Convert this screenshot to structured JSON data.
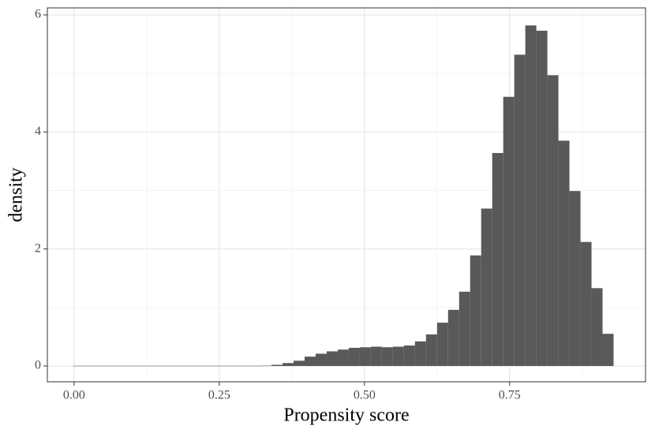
{
  "chart_data": {
    "type": "histogram",
    "xlabel": "Propensity score",
    "ylabel": "density",
    "bins": [
      -0.002,
      0.017,
      0.036,
      0.055,
      0.074,
      0.093,
      0.112,
      0.131,
      0.15,
      0.169,
      0.188,
      0.207,
      0.226,
      0.245,
      0.264,
      0.283,
      0.302,
      0.321,
      0.34,
      0.359,
      0.378,
      0.397,
      0.416,
      0.435,
      0.454,
      0.473,
      0.492,
      0.511,
      0.53,
      0.549,
      0.568,
      0.587,
      0.606,
      0.625,
      0.644,
      0.663,
      0.682,
      0.701,
      0.72,
      0.739,
      0.758,
      0.777,
      0.796,
      0.815,
      0.834,
      0.853,
      0.872,
      0.891,
      0.91,
      0.929
    ],
    "values": [
      0.003,
      0.003,
      0.003,
      0.003,
      0.003,
      0.003,
      0.003,
      0.003,
      0.003,
      0.003,
      0.003,
      0.003,
      0.003,
      0.003,
      0.003,
      0.003,
      0.003,
      0.005,
      0.02,
      0.05,
      0.09,
      0.16,
      0.21,
      0.25,
      0.28,
      0.31,
      0.32,
      0.33,
      0.32,
      0.33,
      0.35,
      0.42,
      0.54,
      0.74,
      0.96,
      1.27,
      1.89,
      2.69,
      3.64,
      4.6,
      5.32,
      5.82,
      5.73,
      4.97,
      3.85,
      2.99,
      2.12,
      1.33,
      0.55
    ],
    "color": "#595959",
    "xlim": [
      -0.046,
      0.984
    ],
    "ylim": [
      -0.27,
      6.12
    ],
    "xticks": [
      {
        "value": 0,
        "label": "0.00"
      },
      {
        "value": 0.25,
        "label": "0.25"
      },
      {
        "value": 0.5,
        "label": "0.50"
      },
      {
        "value": 0.75,
        "label": "0.75"
      }
    ],
    "yticks": [
      0,
      2,
      4,
      6
    ],
    "xminor": [
      0.125,
      0.375,
      0.625,
      0.875
    ],
    "yminor": [
      1,
      3,
      5
    ],
    "grid": true
  }
}
